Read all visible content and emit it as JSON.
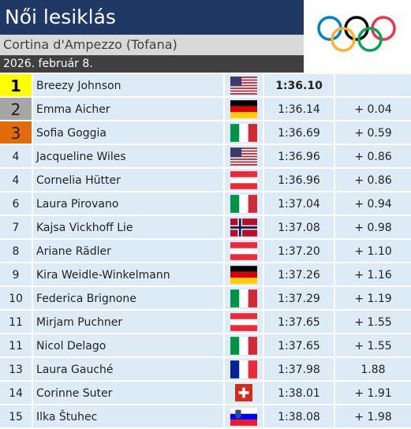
{
  "header": {
    "title": "Női lesiklás",
    "subtitle": "Cortina d'Ampezzo (Tofana)",
    "date": "2026. február 8."
  },
  "table": {
    "rows": [
      [
        "1",
        "Breezy Johnson",
        "1:36.10",
        null
      ],
      [
        "2",
        "Emma Aicher",
        "1:36.14",
        "+ 0.04"
      ],
      [
        "3",
        "Sofia Goggia",
        "1:36.69",
        "+ 0.59"
      ],
      [
        "4",
        "Jacqueline Wiles",
        "1:36.96",
        "+ 0.86"
      ],
      [
        "4",
        "Cornelia Hütter",
        "1:36.96",
        "+ 0.86"
      ],
      [
        "6",
        "Laura Pirovano",
        "1:37.04",
        "+ 0.94"
      ],
      [
        "7",
        "Kajsa Vickhoff Lie",
        "1:37.08",
        "+ 0.98"
      ],
      [
        "8",
        "Ariane Rädler",
        "1:37.20",
        "+ 1.10"
      ],
      [
        "9",
        "Kira Weidle-Winkelmann",
        "1:37.26",
        "+ 1.16"
      ],
      [
        "10",
        "Federica Brignone",
        "1:37.29",
        "+ 1.19"
      ],
      [
        "11",
        "Mirjam Puchner",
        "1:37.65",
        "+ 1.55"
      ],
      [
        "11",
        "Nicol Delago",
        "1:37.65",
        "+ 1.55"
      ],
      [
        "13",
        "Laura Gauché",
        "1:37.98",
        "1.88"
      ],
      [
        "14",
        "Corinne Suter",
        "1:38.01",
        "+ 1.91"
      ],
      [
        "15",
        "Ilka Štuhec",
        "1:38.08",
        "+ 1.98"
      ]
    ]
  }
}
